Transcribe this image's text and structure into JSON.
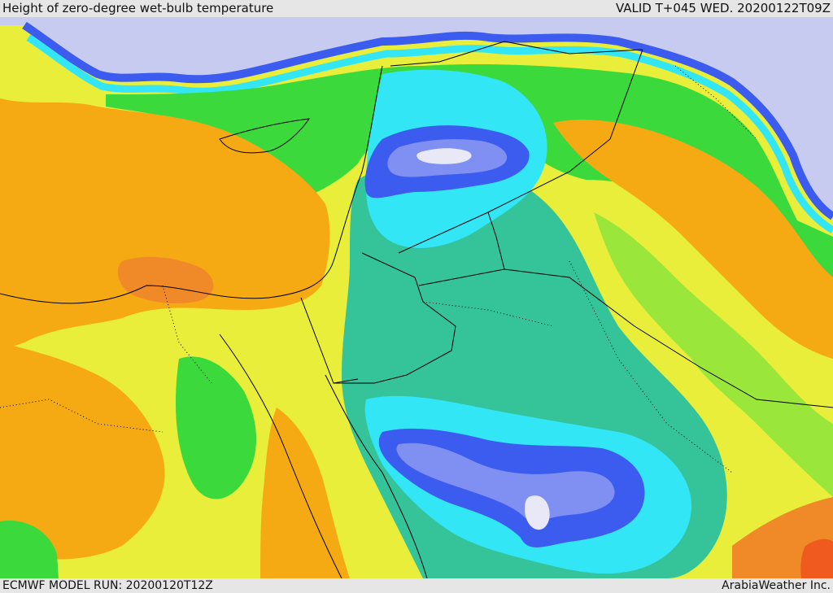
{
  "header": {
    "title": "Height of zero-degree wet-bulb temperature",
    "valid": "VALID T+045 WED. 20200122T09Z"
  },
  "footer": {
    "model_run": "ECMWF MODEL RUN: 20200120T12Z",
    "credit": "ArabiaWeather Inc."
  },
  "palette": {
    "very_low": "#c8cbf0",
    "low_blue": "#3c5cf0",
    "mid_blue": "#7f8ff2",
    "cyan": "#33e6f5",
    "teal": "#35c39a",
    "green": "#3cd93c",
    "light_green": "#9be63a",
    "yellow": "#e8ee3a",
    "orange": "#f5aa14",
    "dark_orange": "#f08a28",
    "red": "#f05a1e",
    "white_spot": "#e8e8f6",
    "border": "#000000"
  }
}
